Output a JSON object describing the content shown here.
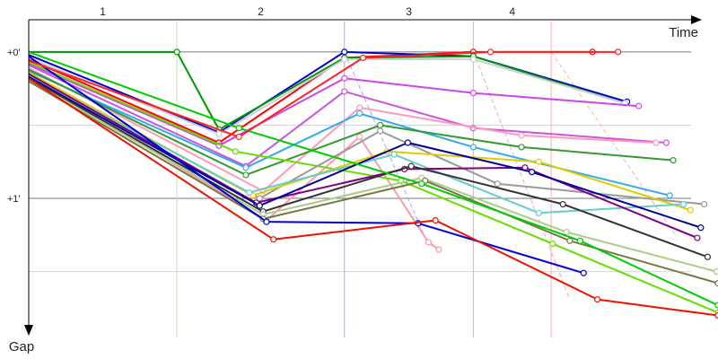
{
  "chart_data": {
    "type": "line",
    "title": "",
    "xlabel": "Time",
    "ylabel": "Gap",
    "x_axis_marks": [
      "1",
      "2",
      "3",
      "4"
    ],
    "y_tick_labels": [
      "+0'",
      "+1'"
    ],
    "y_tick_values": [
      0,
      1
    ],
    "ylim": [
      -0.22,
      1.95
    ],
    "xlim": [
      0,
      100
    ],
    "y_inverted": true,
    "grid": true,
    "vertical_markers": [
      {
        "x": 21.5,
        "color": "#b7e7a9",
        "dashed_link": [
          [
            21.5,
            0
          ],
          [
            27.6,
            0.55
          ]
        ]
      },
      {
        "x": 45.8,
        "color": "#a7a7f5",
        "dashed_link": [
          [
            45.8,
            0
          ],
          [
            57.8,
            1.3
          ]
        ]
      },
      {
        "x": 64.5,
        "color": "#f3aaaa",
        "dashed_link": [
          [
            64.5,
            0
          ],
          [
            78.5,
            1.69
          ]
        ]
      },
      {
        "x": 75.8,
        "color": "#f7b2b2",
        "dashed_link": [
          [
            75.8,
            0
          ],
          [
            93.8,
            1.25
          ]
        ]
      }
    ],
    "series": [
      {
        "color": "#ff0000",
        "points": [
          [
            0,
            0.05
          ],
          [
            27.6,
            0.62
          ],
          [
            45.8,
            0.04
          ],
          [
            64.5,
            0.0
          ],
          [
            81.8,
            0.0
          ]
        ]
      },
      {
        "color": "#0000cc",
        "points": [
          [
            0,
            0.02
          ],
          [
            27.6,
            0.55
          ],
          [
            45.8,
            0.0
          ],
          [
            64.5,
            0.03
          ],
          [
            86.8,
            0.34
          ]
        ]
      },
      {
        "color": "#009900",
        "points": [
          [
            0,
            0.0
          ],
          [
            21.5,
            0.0
          ],
          [
            27.6,
            0.53
          ],
          [
            45.8,
            0.04
          ],
          [
            64.5,
            0.03
          ],
          [
            86.5,
            0.35
          ]
        ]
      },
      {
        "color": "#ccccdd",
        "points": [
          [
            0,
            0.04
          ],
          [
            27.6,
            0.56
          ],
          [
            45.8,
            0.05
          ],
          [
            64.5,
            0.05
          ],
          [
            86.5,
            0.35
          ]
        ]
      },
      {
        "color": "#cc44ee",
        "points": [
          [
            0,
            0.08
          ],
          [
            27.6,
            0.64
          ],
          [
            45.8,
            0.18
          ],
          [
            64.5,
            0.28
          ],
          [
            88.5,
            0.37
          ]
        ]
      },
      {
        "color": "#cc55dd",
        "points": [
          [
            0,
            0.09
          ],
          [
            31.5,
            0.78
          ],
          [
            45.8,
            0.27
          ],
          [
            64.5,
            0.52
          ],
          [
            92.5,
            0.62
          ]
        ]
      },
      {
        "color": "#ff99bb",
        "points": [
          [
            0,
            0.11
          ],
          [
            34.0,
            0.95
          ],
          [
            48.0,
            0.38
          ],
          [
            71.5,
            0.57
          ],
          [
            91.0,
            0.62
          ]
        ]
      },
      {
        "color": "#ff99aa",
        "points": [
          [
            0,
            0.16
          ],
          [
            34.5,
            1.15
          ],
          [
            48.0,
            0.58
          ],
          [
            58.0,
            1.3
          ],
          [
            59.5,
            1.35
          ]
        ]
      },
      {
        "color": "#33aaee",
        "points": [
          [
            0,
            0.13
          ],
          [
            31.5,
            0.79
          ],
          [
            48.0,
            0.42
          ],
          [
            64.5,
            0.65
          ],
          [
            93.0,
            0.98
          ]
        ]
      },
      {
        "color": "#339933",
        "points": [
          [
            0,
            0.12
          ],
          [
            31.5,
            0.84
          ],
          [
            51.0,
            0.5
          ],
          [
            71.5,
            0.65
          ],
          [
            93.5,
            0.74
          ]
        ]
      },
      {
        "color": "#66dd00",
        "points": [
          [
            0,
            0.07
          ],
          [
            30.0,
            0.68
          ],
          [
            54.0,
            0.88
          ],
          [
            76.0,
            1.31
          ],
          [
            100,
            1.78
          ]
        ]
      },
      {
        "color": "#999999",
        "points": [
          [
            0,
            0.15
          ],
          [
            33.5,
            1.0
          ],
          [
            51.0,
            0.54
          ],
          [
            68.0,
            0.9
          ],
          [
            98.0,
            1.04
          ]
        ]
      },
      {
        "color": "#ddcc00",
        "points": [
          [
            0,
            0.14
          ],
          [
            32.5,
            0.98
          ],
          [
            52.0,
            0.68
          ],
          [
            74.0,
            0.75
          ],
          [
            96.0,
            1.08
          ]
        ]
      },
      {
        "color": "#66cccc",
        "points": [
          [
            0,
            0.16
          ],
          [
            32.0,
            0.96
          ],
          [
            53.0,
            0.7
          ],
          [
            74.0,
            1.1
          ],
          [
            95.0,
            1.04
          ]
        ]
      },
      {
        "color": "#800080",
        "points": [
          [
            0,
            0.15
          ],
          [
            33.0,
            1.03
          ],
          [
            54.5,
            0.8
          ],
          [
            72.0,
            0.79
          ],
          [
            97.0,
            1.27
          ]
        ]
      },
      {
        "color": "#000099",
        "points": [
          [
            0,
            0.17
          ],
          [
            33.5,
            1.05
          ],
          [
            55.0,
            0.62
          ],
          [
            73.0,
            0.82
          ],
          [
            97.5,
            1.2
          ]
        ]
      },
      {
        "color": "#333333",
        "points": [
          [
            0,
            0.18
          ],
          [
            34.0,
            1.09
          ],
          [
            55.5,
            0.78
          ],
          [
            77.5,
            1.04
          ],
          [
            98.5,
            1.4
          ]
        ]
      },
      {
        "color": "#aacc88",
        "points": [
          [
            0,
            0.19
          ],
          [
            34.0,
            1.11
          ],
          [
            57.0,
            0.86
          ],
          [
            78.0,
            1.23
          ],
          [
            99.8,
            1.5
          ]
        ]
      },
      {
        "color": "#777744",
        "points": [
          [
            0,
            0.2
          ],
          [
            34.0,
            1.14
          ],
          [
            57.5,
            0.88
          ],
          [
            78.5,
            1.29
          ],
          [
            100,
            1.58
          ]
        ]
      },
      {
        "color": "#0000dd",
        "points": [
          [
            0,
            0.03
          ],
          [
            34.5,
            1.16
          ],
          [
            56.5,
            1.17
          ],
          [
            80.5,
            1.51
          ]
        ]
      },
      {
        "color": "#ee1100",
        "points": [
          [
            0,
            0.18
          ],
          [
            35.5,
            1.28
          ],
          [
            59.0,
            1.15
          ],
          [
            82.5,
            1.69
          ],
          [
            100,
            1.8
          ]
        ]
      },
      {
        "color": "#00cc00",
        "points": [
          [
            0,
            0.0
          ],
          [
            30.5,
            0.52
          ],
          [
            57.0,
            0.9
          ],
          [
            80.0,
            1.29
          ],
          [
            100,
            1.73
          ]
        ]
      },
      {
        "color": "#ff2222",
        "points": [
          [
            0,
            0.06
          ],
          [
            30.5,
            0.58
          ],
          [
            48.5,
            0.04
          ],
          [
            67.0,
            0.0
          ],
          [
            85.5,
            0.0
          ]
        ]
      }
    ]
  }
}
